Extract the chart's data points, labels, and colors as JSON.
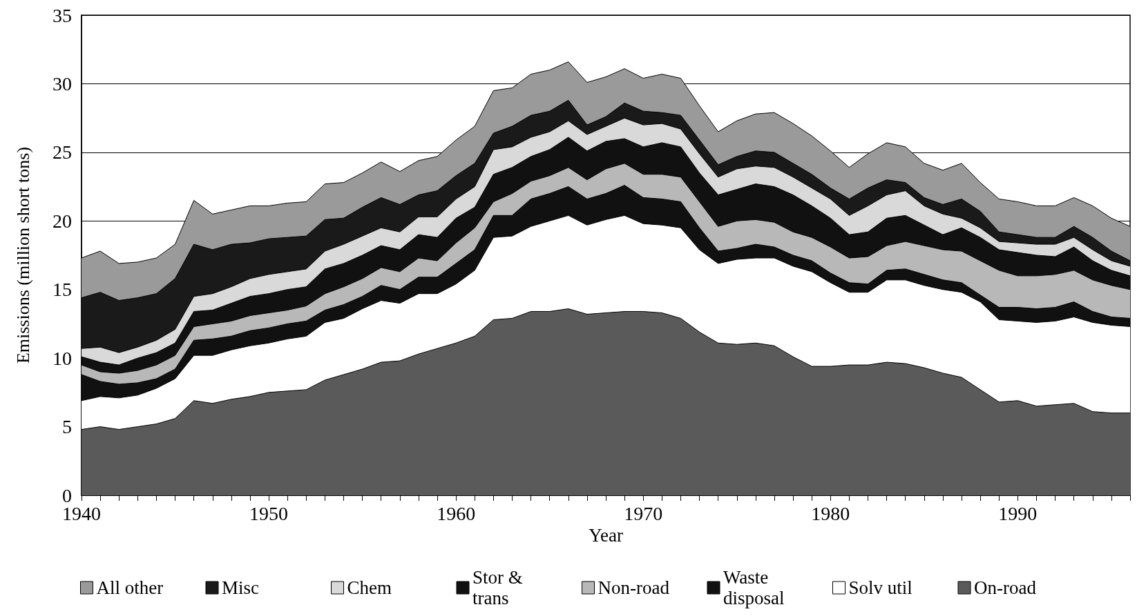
{
  "chart_data": {
    "type": "area",
    "stacked": true,
    "xlabel": "Year",
    "ylabel": "Emissions (million short tons)",
    "legend": "bottom",
    "grid": "y",
    "x": [
      1940,
      1941,
      1942,
      1943,
      1944,
      1945,
      1946,
      1947,
      1948,
      1949,
      1950,
      1951,
      1952,
      1953,
      1954,
      1955,
      1956,
      1957,
      1958,
      1959,
      1960,
      1961,
      1962,
      1963,
      1964,
      1965,
      1966,
      1967,
      1968,
      1969,
      1970,
      1971,
      1972,
      1973,
      1974,
      1975,
      1976,
      1977,
      1978,
      1979,
      1980,
      1981,
      1982,
      1983,
      1984,
      1985,
      1986,
      1987,
      1988,
      1989,
      1990,
      1991,
      1992,
      1993,
      1994,
      1995,
      1996
    ],
    "xlim": [
      1940,
      1996
    ],
    "xticks": [
      1940,
      {
        "value": 1941,
        "label": null
      },
      {
        "value": 1942,
        "label": null
      },
      {
        "value": 1943,
        "label": null
      },
      {
        "value": 1944,
        "label": null
      },
      {
        "value": 1945,
        "label": null
      },
      {
        "value": 1946,
        "label": null
      },
      {
        "value": 1947,
        "label": null
      },
      {
        "value": 1948,
        "label": null
      },
      {
        "value": 1949,
        "label": null
      },
      1950,
      {
        "value": 1951,
        "label": null
      },
      {
        "value": 1952,
        "label": null
      },
      {
        "value": 1953,
        "label": null
      },
      {
        "value": 1954,
        "label": null
      },
      {
        "value": 1955,
        "label": null
      },
      {
        "value": 1956,
        "label": null
      },
      {
        "value": 1957,
        "label": null
      },
      {
        "value": 1958,
        "label": null
      },
      {
        "value": 1959,
        "label": null
      },
      1960,
      {
        "value": 1961,
        "label": null
      },
      {
        "value": 1962,
        "label": null
      },
      {
        "value": 1963,
        "label": null
      },
      {
        "value": 1964,
        "label": null
      },
      {
        "value": 1965,
        "label": null
      },
      {
        "value": 1966,
        "label": null
      },
      {
        "value": 1967,
        "label": null
      },
      {
        "value": 1968,
        "label": null
      },
      {
        "value": 1969,
        "label": null
      },
      1970,
      {
        "value": 1971,
        "label": null
      },
      {
        "value": 1972,
        "label": null
      },
      {
        "value": 1973,
        "label": null
      },
      {
        "value": 1974,
        "label": null
      },
      {
        "value": 1975,
        "label": null
      },
      {
        "value": 1976,
        "label": null
      },
      {
        "value": 1977,
        "label": null
      },
      {
        "value": 1978,
        "label": null
      },
      {
        "value": 1979,
        "label": null
      },
      1980,
      {
        "value": 1981,
        "label": null
      },
      {
        "value": 1982,
        "label": null
      },
      {
        "value": 1983,
        "label": null
      },
      {
        "value": 1984,
        "label": null
      },
      {
        "value": 1985,
        "label": null
      },
      {
        "value": 1986,
        "label": null
      },
      {
        "value": 1987,
        "label": null
      },
      {
        "value": 1988,
        "label": null
      },
      {
        "value": 1989,
        "label": null
      },
      1990,
      {
        "value": 1991,
        "label": null
      },
      {
        "value": 1992,
        "label": null
      },
      {
        "value": 1993,
        "label": null
      },
      {
        "value": 1994,
        "label": null
      },
      {
        "value": 1995,
        "label": null
      },
      {
        "value": 1996,
        "label": null
      }
    ],
    "ylim": [
      0,
      35
    ],
    "yticks": [
      0,
      5,
      10,
      15,
      20,
      25,
      30,
      35
    ],
    "series": [
      {
        "name": "On-road",
        "color": "#5a5a5a",
        "values": [
          4.8,
          5.0,
          4.8,
          5.0,
          5.2,
          5.6,
          6.9,
          6.7,
          7.0,
          7.2,
          7.5,
          7.6,
          7.7,
          8.4,
          8.8,
          9.2,
          9.7,
          9.8,
          10.3,
          10.7,
          11.1,
          11.6,
          12.8,
          12.9,
          13.4,
          13.4,
          13.6,
          13.2,
          13.3,
          13.4,
          13.4,
          13.3,
          12.9,
          11.9,
          11.1,
          11.0,
          11.1,
          10.9,
          10.1,
          9.4,
          9.4,
          9.5,
          9.5,
          9.7,
          9.6,
          9.3,
          8.9,
          8.6,
          7.7,
          6.8,
          6.9,
          6.5,
          6.6,
          6.7,
          6.1,
          6.0,
          6.0
        ]
      },
      {
        "name": "Solv util",
        "color": "#ffffff",
        "values": [
          2.1,
          2.2,
          2.3,
          2.3,
          2.6,
          2.9,
          3.3,
          3.5,
          3.6,
          3.7,
          3.6,
          3.8,
          3.9,
          4.2,
          4.1,
          4.4,
          4.5,
          4.2,
          4.4,
          4.0,
          4.3,
          4.8,
          6.0,
          6.0,
          6.2,
          6.6,
          6.8,
          6.5,
          6.8,
          7.0,
          6.4,
          6.4,
          6.6,
          6.0,
          5.8,
          6.2,
          6.2,
          6.4,
          6.6,
          6.9,
          6.1,
          5.3,
          5.3,
          6.0,
          6.1,
          6.0,
          6.1,
          6.2,
          6.4,
          6.0,
          5.8,
          6.1,
          6.1,
          6.3,
          6.5,
          6.4,
          6.3
        ]
      },
      {
        "name": "Waste disposal",
        "color": "#111111",
        "values": [
          1.9,
          1.1,
          1.0,
          0.9,
          0.7,
          0.7,
          1.1,
          1.2,
          1.0,
          1.1,
          1.1,
          1.1,
          1.1,
          0.9,
          1.0,
          0.9,
          1.1,
          1.0,
          1.2,
          1.2,
          1.5,
          1.5,
          1.6,
          1.5,
          2.0,
          2.0,
          2.1,
          1.9,
          1.9,
          2.2,
          1.9,
          1.9,
          1.9,
          1.6,
          0.9,
          0.8,
          1.0,
          0.8,
          0.8,
          0.8,
          0.7,
          0.7,
          0.6,
          0.7,
          0.8,
          0.8,
          0.7,
          0.7,
          0.5,
          0.9,
          1.0,
          1.0,
          1.0,
          1.1,
          0.8,
          0.6,
          0.6
        ]
      },
      {
        "name": "Non-road",
        "color": "#b8b8b8",
        "values": [
          0.7,
          0.7,
          0.8,
          0.9,
          1.0,
          1.0,
          1.0,
          1.1,
          1.1,
          1.1,
          1.1,
          1.0,
          1.1,
          1.2,
          1.3,
          1.3,
          1.3,
          1.3,
          1.4,
          1.2,
          1.5,
          1.6,
          1.0,
          1.6,
          1.3,
          1.3,
          1.4,
          1.4,
          1.8,
          1.6,
          1.7,
          1.8,
          1.8,
          1.9,
          1.8,
          2.0,
          1.8,
          1.8,
          1.7,
          1.7,
          1.9,
          1.8,
          2.0,
          1.8,
          2.0,
          2.1,
          2.2,
          2.3,
          2.5,
          2.7,
          2.3,
          2.4,
          2.4,
          2.3,
          2.3,
          2.3,
          2.1
        ]
      },
      {
        "name": "Stor & trans",
        "color": "#111111",
        "values": [
          0.6,
          0.7,
          0.6,
          0.9,
          0.9,
          0.9,
          1.1,
          1.0,
          1.3,
          1.4,
          1.4,
          1.5,
          1.4,
          1.8,
          1.7,
          1.7,
          1.6,
          1.6,
          1.7,
          1.7,
          1.8,
          1.5,
          2.0,
          1.9,
          1.8,
          1.9,
          2.2,
          2.1,
          2.0,
          1.8,
          2.0,
          2.3,
          2.2,
          2.1,
          2.3,
          2.3,
          2.6,
          2.6,
          2.7,
          2.3,
          2.1,
          1.7,
          1.8,
          2.0,
          1.9,
          1.5,
          1.1,
          1.7,
          1.7,
          1.5,
          1.7,
          1.5,
          1.3,
          1.7,
          1.4,
          1.1,
          1.0
        ]
      },
      {
        "name": "Chem",
        "color": "#d9d9d9",
        "values": [
          0.6,
          1.1,
          0.9,
          0.8,
          0.9,
          1.0,
          1.1,
          1.2,
          1.2,
          1.3,
          1.4,
          1.3,
          1.3,
          1.3,
          1.4,
          1.4,
          1.3,
          1.3,
          1.3,
          1.5,
          1.4,
          1.5,
          1.8,
          1.5,
          1.4,
          1.3,
          1.2,
          1.2,
          1.1,
          1.5,
          1.6,
          1.4,
          1.3,
          1.4,
          1.3,
          1.5,
          1.3,
          1.4,
          1.3,
          1.3,
          1.4,
          1.4,
          1.9,
          1.7,
          1.8,
          1.4,
          1.5,
          0.7,
          0.7,
          0.6,
          0.7,
          0.8,
          0.9,
          0.7,
          0.8,
          0.7,
          0.7
        ]
      },
      {
        "name": "Misc",
        "color": "#1a1a1a",
        "values": [
          3.7,
          4.0,
          3.8,
          3.6,
          3.4,
          3.7,
          3.8,
          3.2,
          3.1,
          2.6,
          2.6,
          2.5,
          2.4,
          2.3,
          1.9,
          2.1,
          2.2,
          2.0,
          1.6,
          1.9,
          1.7,
          1.7,
          1.2,
          1.5,
          1.6,
          1.5,
          1.5,
          0.7,
          0.7,
          1.1,
          1.0,
          0.8,
          1.0,
          1.0,
          0.9,
          0.9,
          1.1,
          1.1,
          1.0,
          1.0,
          0.8,
          1.2,
          1.3,
          1.1,
          0.6,
          0.6,
          0.7,
          1.4,
          1.2,
          0.7,
          0.6,
          0.5,
          0.5,
          0.8,
          0.9,
          0.7,
          0.4
        ]
      },
      {
        "name": "All other",
        "color": "#9a9a9a",
        "values": [
          2.9,
          3.0,
          2.7,
          2.6,
          2.6,
          2.5,
          3.2,
          2.6,
          2.5,
          2.7,
          2.4,
          2.5,
          2.5,
          2.6,
          2.6,
          2.5,
          2.6,
          2.4,
          2.5,
          2.5,
          2.6,
          2.7,
          3.1,
          2.8,
          3.0,
          3.0,
          2.8,
          3.1,
          2.9,
          2.5,
          2.4,
          2.8,
          2.7,
          2.5,
          2.4,
          2.6,
          2.7,
          2.9,
          2.9,
          2.8,
          2.7,
          2.3,
          2.5,
          2.7,
          2.6,
          2.5,
          2.5,
          2.6,
          2.1,
          2.4,
          2.4,
          2.3,
          2.3,
          2.1,
          2.3,
          2.4,
          2.5
        ]
      }
    ]
  }
}
